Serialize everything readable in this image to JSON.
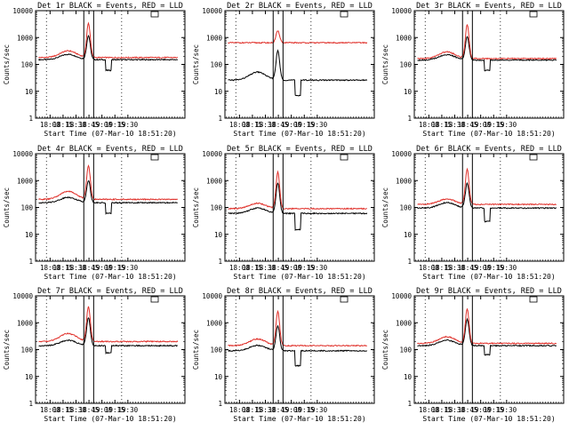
{
  "chart_data": {
    "type": "line",
    "panel_layout": "3x3 grid",
    "x_axis": {
      "xlim": [
        17.72,
        20.6
      ],
      "xlim_note": "hours since 00:00 of 07-Mar-10",
      "tick_values": [
        18.0,
        18.25,
        18.5,
        18.75,
        19.0,
        19.25,
        19.5
      ],
      "tick_labels": [
        "18:00",
        "18:15",
        "18:30",
        "18:45",
        "19:00",
        "19:15",
        "19:30"
      ],
      "minor_tick_step": 0.05,
      "xlabel": "Start Time (07-Mar-10 18:51:20)"
    },
    "y_axis": {
      "scale": "log",
      "ylim": [
        1,
        10000
      ],
      "tick_values": [
        1,
        10,
        100,
        1000,
        10000
      ],
      "tick_labels": [
        "1",
        "10",
        "100",
        "1000",
        "10000"
      ],
      "ylabel": "Counts/sec"
    },
    "dotted_guides_x": [
      17.93,
      19.38
    ],
    "solid_guides_x": [
      18.65,
      18.84
    ],
    "legend_marker": "small open box, top-right inside plot",
    "series_colors": {
      "Events": "#000000",
      "LLD": "#e0302a"
    },
    "panels": [
      {
        "title": "Det 1r BLACK = Events, RED = LLD",
        "series": [
          {
            "name": "Events",
            "color": "#000000",
            "base": 150,
            "bump_amp": 0.2,
            "peak": 1150,
            "dip_value": 60
          },
          {
            "name": "LLD",
            "color": "#e0302a",
            "base": 180,
            "bump_amp": 0.25,
            "peak": 3300,
            "dip_value": null
          }
        ]
      },
      {
        "title": "Det 2r BLACK = Events, RED = LLD",
        "series": [
          {
            "name": "Events",
            "color": "#000000",
            "base": 26,
            "bump_amp": 0.3,
            "peak": 310,
            "dip_value": 7
          },
          {
            "name": "LLD",
            "color": "#e0302a",
            "base": 640,
            "bump_amp": 0.0,
            "peak": 1750,
            "dip_value": null
          }
        ]
      },
      {
        "title": "Det 3r BLACK = Events, RED = LLD",
        "series": [
          {
            "name": "Events",
            "color": "#000000",
            "base": 145,
            "bump_amp": 0.2,
            "peak": 1050,
            "dip_value": 60
          },
          {
            "name": "LLD",
            "color": "#e0302a",
            "base": 165,
            "bump_amp": 0.25,
            "peak": 3000,
            "dip_value": null
          }
        ]
      },
      {
        "title": "Det 4r BLACK = Events, RED = LLD",
        "series": [
          {
            "name": "Events",
            "color": "#000000",
            "base": 150,
            "bump_amp": 0.2,
            "peak": 1000,
            "dip_value": 60
          },
          {
            "name": "LLD",
            "color": "#e0302a",
            "base": 200,
            "bump_amp": 0.3,
            "peak": 3500,
            "dip_value": null
          }
        ]
      },
      {
        "title": "Det 5r BLACK = Events, RED = LLD",
        "series": [
          {
            "name": "Events",
            "color": "#000000",
            "base": 60,
            "bump_amp": 0.2,
            "peak": 780,
            "dip_value": 15
          },
          {
            "name": "LLD",
            "color": "#e0302a",
            "base": 90,
            "bump_amp": 0.2,
            "peak": 2000,
            "dip_value": null
          }
        ]
      },
      {
        "title": "Det 6r BLACK = Events, RED = LLD",
        "series": [
          {
            "name": "Events",
            "color": "#000000",
            "base": 95,
            "bump_amp": 0.2,
            "peak": 780,
            "dip_value": 30
          },
          {
            "name": "LLD",
            "color": "#e0302a",
            "base": 130,
            "bump_amp": 0.2,
            "peak": 2600,
            "dip_value": null
          }
        ]
      },
      {
        "title": "Det 7r BLACK = Events, RED = LLD",
        "series": [
          {
            "name": "Events",
            "color": "#000000",
            "base": 140,
            "bump_amp": 0.2,
            "peak": 1500,
            "dip_value": 75
          },
          {
            "name": "LLD",
            "color": "#e0302a",
            "base": 200,
            "bump_amp": 0.3,
            "peak": 3800,
            "dip_value": null
          }
        ]
      },
      {
        "title": "Det 8r BLACK = Events, RED = LLD",
        "series": [
          {
            "name": "Events",
            "color": "#000000",
            "base": 90,
            "bump_amp": 0.2,
            "peak": 750,
            "dip_value": 25
          },
          {
            "name": "LLD",
            "color": "#e0302a",
            "base": 140,
            "bump_amp": 0.25,
            "peak": 2500,
            "dip_value": null
          }
        ]
      },
      {
        "title": "Det 9r BLACK = Events, RED = LLD",
        "series": [
          {
            "name": "Events",
            "color": "#000000",
            "base": 140,
            "bump_amp": 0.2,
            "peak": 1300,
            "dip_value": 65
          },
          {
            "name": "LLD",
            "color": "#e0302a",
            "base": 170,
            "bump_amp": 0.25,
            "peak": 3100,
            "dip_value": null
          }
        ]
      }
    ],
    "shape_notes": {
      "bump_center": 18.35,
      "peak_center": 18.74,
      "peak_width": 0.05,
      "dip_range": [
        19.07,
        19.18
      ],
      "bump_amp_unit": "dex"
    }
  }
}
